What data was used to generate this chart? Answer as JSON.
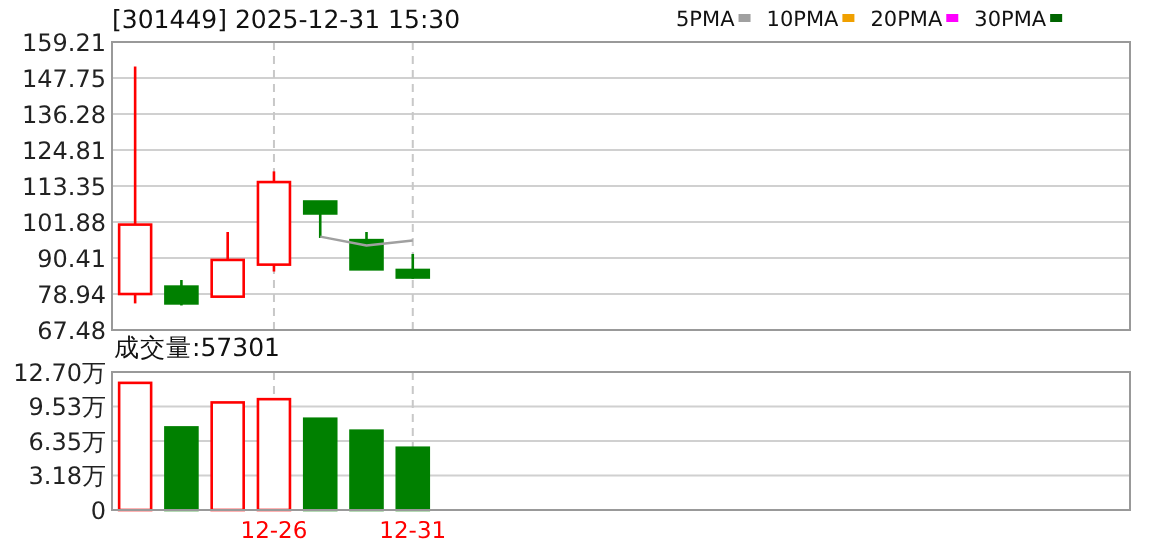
{
  "chart_data": [
    {
      "type": "candlestick",
      "title": "[301449] 2025-12-31 15:30",
      "categories": [
        null,
        null,
        null,
        null,
        null,
        null,
        null
      ],
      "ohlc": [
        [
          78.94,
          151.4,
          75.95,
          101.05
        ],
        [
          81.3,
          83.4,
          75.3,
          75.95
        ],
        [
          78.1,
          98.7,
          78.1,
          89.8
        ],
        [
          88.3,
          118.0,
          86.1,
          114.6
        ],
        [
          108.4,
          108.4,
          96.8,
          104.6
        ],
        [
          96.1,
          98.7,
          86.8,
          86.8
        ],
        [
          86.6,
          91.7,
          83.8,
          84.2
        ]
      ],
      "colors": [
        "#ff0000",
        "#008000",
        "#ff0000",
        "#ff0000",
        "#008000",
        "#008000",
        "#008000"
      ],
      "series": [
        {
          "name": "5PMA",
          "type": "line",
          "color": "#a0a0a0",
          "values": [
            null,
            null,
            null,
            null,
            97.2,
            94.4,
            96.0
          ]
        },
        {
          "name": "10PMA",
          "type": "line",
          "color": "#f0a000",
          "values": [
            null,
            null,
            null,
            null,
            null,
            null,
            null
          ]
        },
        {
          "name": "20PMA",
          "type": "line",
          "color": "#ff00ff",
          "values": [
            null,
            null,
            null,
            null,
            null,
            null,
            null
          ]
        },
        {
          "name": "30PMA",
          "type": "line",
          "color": "#006400",
          "values": [
            null,
            null,
            null,
            null,
            null,
            null,
            null
          ]
        }
      ],
      "ylim": [
        67.48,
        159.21
      ],
      "yticks": [
        67.48,
        78.94,
        90.41,
        101.88,
        113.35,
        124.81,
        136.28,
        147.75,
        159.21
      ],
      "grid": true,
      "legend": "top right",
      "tick_labels": "y"
    },
    {
      "type": "bar",
      "title": "成交量:57301",
      "categories": [
        null,
        null,
        null,
        "12-26",
        null,
        null,
        "12-31"
      ],
      "values": [
        11.7,
        7.6,
        9.9,
        10.2,
        8.4,
        7.3,
        5.73
      ],
      "colors": [
        "#ff0000",
        "#008000",
        "#ff0000",
        "#ff0000",
        "#008000",
        "#008000",
        "#008000"
      ],
      "ylim": [
        0,
        12.7
      ],
      "yticks": [
        0,
        {
          "value": 3.18,
          "label": "3.18万"
        },
        {
          "value": 6.35,
          "label": "6.35万"
        },
        {
          "value": 9.53,
          "label": "9.53万"
        },
        {
          "value": 12.7,
          "label": "12.70万"
        }
      ],
      "grid": true
    }
  ]
}
